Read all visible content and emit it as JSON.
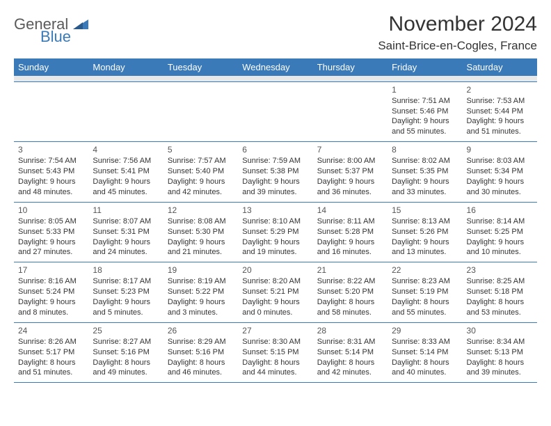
{
  "brand": {
    "line1": "General",
    "line2": "Blue"
  },
  "title": "November 2024",
  "location": "Saint-Brice-en-Cogles, France",
  "colors": {
    "header_bg": "#3a7ab8",
    "row_border": "#3a7ab8",
    "spacer_bg": "#e8e8e8",
    "text": "#333333"
  },
  "weekdays": [
    "Sunday",
    "Monday",
    "Tuesday",
    "Wednesday",
    "Thursday",
    "Friday",
    "Saturday"
  ],
  "weeks": [
    [
      null,
      null,
      null,
      null,
      null,
      {
        "n": "1",
        "sr": "7:51 AM",
        "ss": "5:46 PM",
        "dl": "9 hours and 55 minutes."
      },
      {
        "n": "2",
        "sr": "7:53 AM",
        "ss": "5:44 PM",
        "dl": "9 hours and 51 minutes."
      }
    ],
    [
      {
        "n": "3",
        "sr": "7:54 AM",
        "ss": "5:43 PM",
        "dl": "9 hours and 48 minutes."
      },
      {
        "n": "4",
        "sr": "7:56 AM",
        "ss": "5:41 PM",
        "dl": "9 hours and 45 minutes."
      },
      {
        "n": "5",
        "sr": "7:57 AM",
        "ss": "5:40 PM",
        "dl": "9 hours and 42 minutes."
      },
      {
        "n": "6",
        "sr": "7:59 AM",
        "ss": "5:38 PM",
        "dl": "9 hours and 39 minutes."
      },
      {
        "n": "7",
        "sr": "8:00 AM",
        "ss": "5:37 PM",
        "dl": "9 hours and 36 minutes."
      },
      {
        "n": "8",
        "sr": "8:02 AM",
        "ss": "5:35 PM",
        "dl": "9 hours and 33 minutes."
      },
      {
        "n": "9",
        "sr": "8:03 AM",
        "ss": "5:34 PM",
        "dl": "9 hours and 30 minutes."
      }
    ],
    [
      {
        "n": "10",
        "sr": "8:05 AM",
        "ss": "5:33 PM",
        "dl": "9 hours and 27 minutes."
      },
      {
        "n": "11",
        "sr": "8:07 AM",
        "ss": "5:31 PM",
        "dl": "9 hours and 24 minutes."
      },
      {
        "n": "12",
        "sr": "8:08 AM",
        "ss": "5:30 PM",
        "dl": "9 hours and 21 minutes."
      },
      {
        "n": "13",
        "sr": "8:10 AM",
        "ss": "5:29 PM",
        "dl": "9 hours and 19 minutes."
      },
      {
        "n": "14",
        "sr": "8:11 AM",
        "ss": "5:28 PM",
        "dl": "9 hours and 16 minutes."
      },
      {
        "n": "15",
        "sr": "8:13 AM",
        "ss": "5:26 PM",
        "dl": "9 hours and 13 minutes."
      },
      {
        "n": "16",
        "sr": "8:14 AM",
        "ss": "5:25 PM",
        "dl": "9 hours and 10 minutes."
      }
    ],
    [
      {
        "n": "17",
        "sr": "8:16 AM",
        "ss": "5:24 PM",
        "dl": "9 hours and 8 minutes."
      },
      {
        "n": "18",
        "sr": "8:17 AM",
        "ss": "5:23 PM",
        "dl": "9 hours and 5 minutes."
      },
      {
        "n": "19",
        "sr": "8:19 AM",
        "ss": "5:22 PM",
        "dl": "9 hours and 3 minutes."
      },
      {
        "n": "20",
        "sr": "8:20 AM",
        "ss": "5:21 PM",
        "dl": "9 hours and 0 minutes."
      },
      {
        "n": "21",
        "sr": "8:22 AM",
        "ss": "5:20 PM",
        "dl": "8 hours and 58 minutes."
      },
      {
        "n": "22",
        "sr": "8:23 AM",
        "ss": "5:19 PM",
        "dl": "8 hours and 55 minutes."
      },
      {
        "n": "23",
        "sr": "8:25 AM",
        "ss": "5:18 PM",
        "dl": "8 hours and 53 minutes."
      }
    ],
    [
      {
        "n": "24",
        "sr": "8:26 AM",
        "ss": "5:17 PM",
        "dl": "8 hours and 51 minutes."
      },
      {
        "n": "25",
        "sr": "8:27 AM",
        "ss": "5:16 PM",
        "dl": "8 hours and 49 minutes."
      },
      {
        "n": "26",
        "sr": "8:29 AM",
        "ss": "5:16 PM",
        "dl": "8 hours and 46 minutes."
      },
      {
        "n": "27",
        "sr": "8:30 AM",
        "ss": "5:15 PM",
        "dl": "8 hours and 44 minutes."
      },
      {
        "n": "28",
        "sr": "8:31 AM",
        "ss": "5:14 PM",
        "dl": "8 hours and 42 minutes."
      },
      {
        "n": "29",
        "sr": "8:33 AM",
        "ss": "5:14 PM",
        "dl": "8 hours and 40 minutes."
      },
      {
        "n": "30",
        "sr": "8:34 AM",
        "ss": "5:13 PM",
        "dl": "8 hours and 39 minutes."
      }
    ]
  ],
  "labels": {
    "sunrise": "Sunrise: ",
    "sunset": "Sunset: ",
    "daylight": "Daylight: "
  }
}
